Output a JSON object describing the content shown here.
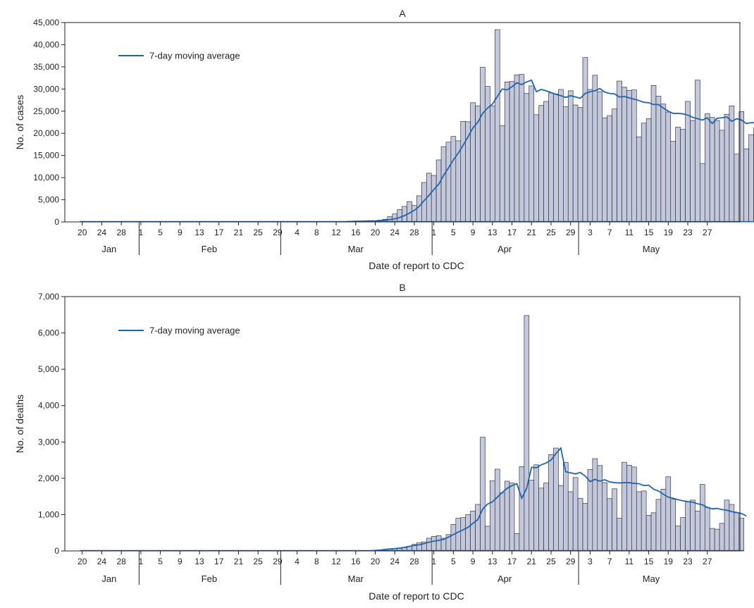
{
  "chart_data": [
    {
      "type": "bar",
      "title": "A",
      "xlabel": "Date of report to CDC",
      "ylabel": "No. of cases",
      "ylim": [
        0,
        45000
      ],
      "yticks": [
        0,
        5000,
        10000,
        15000,
        20000,
        25000,
        30000,
        35000,
        40000,
        45000
      ],
      "ytick_labels": [
        "0",
        "5,000",
        "10,000",
        "15,000",
        "20,000",
        "25,000",
        "30,000",
        "35,000",
        "40,000",
        "45,000"
      ],
      "legend": {
        "label": "7-day moving average",
        "placement": "top-left"
      },
      "start_date": "2020-01-20",
      "series": [
        {
          "kind": "bar",
          "values": [
            0,
            0,
            0,
            0,
            0,
            0,
            0,
            0,
            0,
            0,
            0,
            0,
            0,
            0,
            0,
            0,
            0,
            0,
            0,
            0,
            0,
            0,
            0,
            0,
            0,
            0,
            0,
            0,
            0,
            0,
            0,
            0,
            0,
            0,
            0,
            0,
            0,
            0,
            0,
            0,
            0,
            0,
            0,
            0,
            0,
            0,
            0,
            0,
            0,
            0,
            0,
            0,
            0,
            0,
            0,
            200,
            200,
            200,
            150,
            300,
            300,
            400,
            600,
            1200,
            1800,
            2800,
            3500,
            4600,
            3700,
            5900,
            8900,
            11000,
            10500,
            14000,
            17000,
            18000,
            19300,
            18300,
            22700,
            22600,
            26900,
            26200,
            34900,
            30600,
            26200,
            43400,
            21700,
            31600,
            31700,
            33200,
            33300,
            29000,
            30700,
            24200,
            26300,
            27200,
            29100,
            28900,
            29900,
            26000,
            29600,
            26400,
            25800,
            37100,
            29900,
            33100,
            29400,
            23500,
            24000,
            25500,
            31800,
            30400,
            29700,
            29800,
            19200,
            22300,
            23300,
            30800,
            28400,
            26600,
            24800,
            18200,
            21400,
            20900,
            27200,
            22900,
            32000,
            13200,
            24400,
            23600,
            22900,
            20700,
            24300,
            26200,
            15300,
            24900,
            16500,
            19700,
            21300,
            18200,
            23600
          ]
        },
        {
          "name": "7-day moving average",
          "kind": "line",
          "values": [
            0,
            0,
            0,
            0,
            0,
            0,
            0,
            0,
            0,
            0,
            0,
            0,
            0,
            0,
            0,
            0,
            0,
            0,
            0,
            0,
            0,
            0,
            0,
            0,
            0,
            0,
            0,
            0,
            0,
            0,
            0,
            0,
            0,
            0,
            0,
            0,
            0,
            0,
            0,
            0,
            0,
            0,
            0,
            0,
            0,
            0,
            0,
            0,
            0,
            0,
            0,
            0,
            0,
            0,
            50,
            100,
            150,
            160,
            190,
            210,
            240,
            310,
            390,
            530,
            720,
            1000,
            1430,
            2000,
            2600,
            3500,
            4800,
            6000,
            7300,
            8500,
            10500,
            12200,
            14000,
            15500,
            17300,
            19200,
            21200,
            22500,
            24500,
            25700,
            26600,
            28300,
            30000,
            29800,
            30500,
            31400,
            31000,
            31600,
            32000,
            29400,
            29900,
            29600,
            29200,
            28800,
            28500,
            28100,
            28500,
            28200,
            27900,
            29000,
            29400,
            29600,
            30100,
            29300,
            29000,
            28900,
            28200,
            28300,
            28000,
            27700,
            27400,
            27000,
            26900,
            26500,
            26500,
            25700,
            25000,
            24500,
            24500,
            24400,
            24100,
            23600,
            23300,
            23000,
            23500,
            22200,
            23400,
            23500,
            23700,
            22700,
            23300,
            23000,
            22200,
            22400,
            22400,
            21700,
            21100,
            20800,
            19800
          ]
        }
      ],
      "months": [
        "Jan",
        "Feb",
        "Mar",
        "Apr",
        "May"
      ],
      "day_ticks": [
        "20",
        "24",
        "28",
        "1",
        "5",
        "9",
        "13",
        "17",
        "21",
        "25",
        "29",
        "4",
        "8",
        "12",
        "16",
        "20",
        "24",
        "28",
        "1",
        "5",
        "9",
        "13",
        "17",
        "21",
        "25",
        "29",
        "3",
        "7",
        "11",
        "15",
        "19",
        "23",
        "27"
      ]
    },
    {
      "type": "bar",
      "title": "B",
      "xlabel": "Date of report to CDC",
      "ylabel": "No. of deaths",
      "ylim": [
        0,
        7000
      ],
      "yticks": [
        0,
        1000,
        2000,
        3000,
        4000,
        5000,
        6000,
        7000
      ],
      "ytick_labels": [
        "0",
        "1,000",
        "2,000",
        "3,000",
        "4,000",
        "5,000",
        "6,000",
        "7,000"
      ],
      "legend": {
        "label": "7-day moving average",
        "placement": "top-left"
      },
      "start_date": "2020-01-20",
      "series": [
        {
          "kind": "bar",
          "values": [
            0,
            0,
            0,
            0,
            0,
            0,
            0,
            0,
            0,
            0,
            0,
            0,
            0,
            0,
            0,
            0,
            0,
            0,
            0,
            0,
            0,
            0,
            0,
            0,
            0,
            0,
            0,
            0,
            0,
            0,
            0,
            0,
            0,
            0,
            0,
            0,
            0,
            0,
            0,
            0,
            0,
            0,
            0,
            0,
            0,
            0,
            0,
            0,
            0,
            0,
            0,
            0,
            0,
            0,
            0,
            0,
            0,
            0,
            0,
            0,
            20,
            30,
            40,
            50,
            60,
            70,
            90,
            130,
            180,
            230,
            250,
            350,
            400,
            420,
            350,
            450,
            730,
            900,
            920,
            1000,
            1100,
            1280,
            3130,
            680,
            1930,
            2250,
            1600,
            1920,
            1870,
            480,
            2320,
            6480,
            1950,
            2370,
            1730,
            1870,
            2650,
            2830,
            1800,
            2440,
            1630,
            2020,
            1450,
            1310,
            2240,
            2540,
            2350,
            1880,
            1440,
            1710,
            900,
            2440,
            2360,
            2310,
            1630,
            1650,
            980,
            1050,
            1420,
            1700,
            2040,
            1420,
            690,
            920,
            1350,
            1400,
            1100,
            1830,
            1200,
            620,
            600,
            760,
            1400,
            1280,
            1050,
            900
          ]
        },
        {
          "name": "7-day moving average",
          "kind": "line",
          "values": [
            0,
            0,
            0,
            0,
            0,
            0,
            0,
            0,
            0,
            0,
            0,
            0,
            0,
            0,
            0,
            0,
            0,
            0,
            0,
            0,
            0,
            0,
            0,
            0,
            0,
            0,
            0,
            0,
            0,
            0,
            0,
            0,
            0,
            0,
            0,
            0,
            0,
            0,
            0,
            0,
            0,
            0,
            0,
            0,
            0,
            0,
            0,
            0,
            0,
            0,
            0,
            0,
            0,
            0,
            0,
            0,
            0,
            0,
            0,
            0,
            15,
            25,
            40,
            55,
            65,
            80,
            100,
            125,
            150,
            170,
            200,
            240,
            270,
            290,
            320,
            380,
            450,
            520,
            580,
            650,
            760,
            860,
            1150,
            1290,
            1350,
            1480,
            1610,
            1720,
            1800,
            1850,
            1450,
            1720,
            2300,
            2290,
            2370,
            2420,
            2500,
            2680,
            2830,
            2180,
            2150,
            2120,
            2160,
            2060,
            1910,
            1970,
            1920,
            1960,
            1900,
            1880,
            1870,
            1880,
            1880,
            1860,
            1850,
            1800,
            1810,
            1700,
            1650,
            1560,
            1480,
            1450,
            1410,
            1380,
            1360,
            1340,
            1300,
            1270,
            1200,
            1160,
            1170,
            1140,
            1120,
            1080,
            1060,
            1030,
            960
          ]
        }
      ],
      "months": [
        "Jan",
        "Feb",
        "Mar",
        "Apr",
        "May"
      ],
      "day_ticks": [
        "20",
        "24",
        "28",
        "1",
        "5",
        "9",
        "13",
        "17",
        "21",
        "25",
        "29",
        "4",
        "8",
        "12",
        "16",
        "20",
        "24",
        "28",
        "1",
        "5",
        "9",
        "13",
        "17",
        "21",
        "25",
        "29",
        "3",
        "7",
        "11",
        "15",
        "19",
        "23",
        "27"
      ]
    }
  ]
}
